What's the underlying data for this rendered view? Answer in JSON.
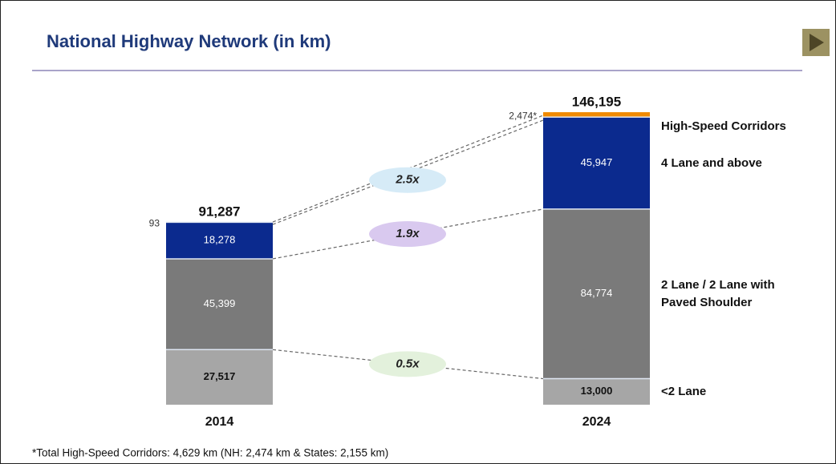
{
  "chart_data": {
    "type": "stacked_bar",
    "title": "National Highway Network (in km)",
    "categories": [
      "2014",
      "2024"
    ],
    "series": [
      {
        "name": "<2 Lane",
        "color": "#a6a6a6",
        "values": [
          27517,
          13000
        ],
        "value_labels": [
          "27,517",
          "13,000"
        ]
      },
      {
        "name": "2 Lane / 2 Lane with Paved Shoulder",
        "color": "#7a7a7a",
        "values": [
          45399,
          84774
        ],
        "value_labels": [
          "45,399",
          "84,774"
        ]
      },
      {
        "name": "4 Lane and above",
        "color": "#0b2a8e",
        "values": [
          18278,
          45947
        ],
        "value_labels": [
          "18,278",
          "45,947"
        ]
      },
      {
        "name": "High-Speed Corridors",
        "color": "#f08a00",
        "values": [
          93,
          2474
        ],
        "value_labels": [
          "93",
          "2,474*"
        ]
      }
    ],
    "totals": [
      91287,
      146195
    ],
    "total_labels": [
      "91,287",
      "146,195"
    ],
    "annotations": [
      "2.5x",
      "1.9x",
      "0.5x"
    ],
    "footnote": "*Total High-Speed Corridors: 4,629 km (NH: 2,474 km & States: 2,155 km)"
  }
}
